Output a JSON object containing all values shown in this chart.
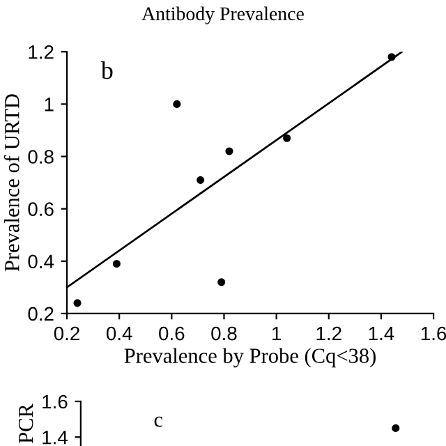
{
  "chart_data": [
    {
      "type": "scatter",
      "ylabel": "Prevalence of URTD",
      "xlabel": "Prevalence by Probe (Cq<38)",
      "annotations": [
        "Antibody Prevalence",
        "b"
      ],
      "xlim": [
        0.2,
        1.6
      ],
      "ylim": [
        0.2,
        1.2
      ],
      "xticks": [
        0.2,
        0.4,
        0.6,
        0.8,
        1,
        1.2,
        1.4,
        1.6
      ],
      "yticks": [
        0.2,
        0.4,
        0.6,
        0.8,
        1,
        1.2
      ],
      "grid": false,
      "legend": false,
      "series": [
        {
          "marker": "circle",
          "color": "#000000",
          "x": [
            0.24,
            0.39,
            0.62,
            0.71,
            0.79,
            0.82,
            1.04,
            1.44
          ],
          "values": [
            0.24,
            0.39,
            1.0,
            0.71,
            0.32,
            0.82,
            0.87,
            1.18
          ]
        },
        {
          "type": "line",
          "color": "#000000",
          "x": [
            0.2,
            1.48
          ],
          "values": [
            0.3,
            1.2
          ]
        }
      ]
    },
    {
      "type": "scatter",
      "ylabel": "PCR",
      "annotations": [
        "c"
      ],
      "xlim": [
        0.2,
        1.6
      ],
      "ylim": [
        1.35,
        1.6
      ],
      "yticks": [
        1.4,
        1.6
      ],
      "tick_labels": "y",
      "grid": false,
      "legend": false,
      "series": [
        {
          "marker": "circle",
          "color": "#000000",
          "x": [
            1.45
          ],
          "values": [
            1.45
          ]
        }
      ]
    }
  ]
}
